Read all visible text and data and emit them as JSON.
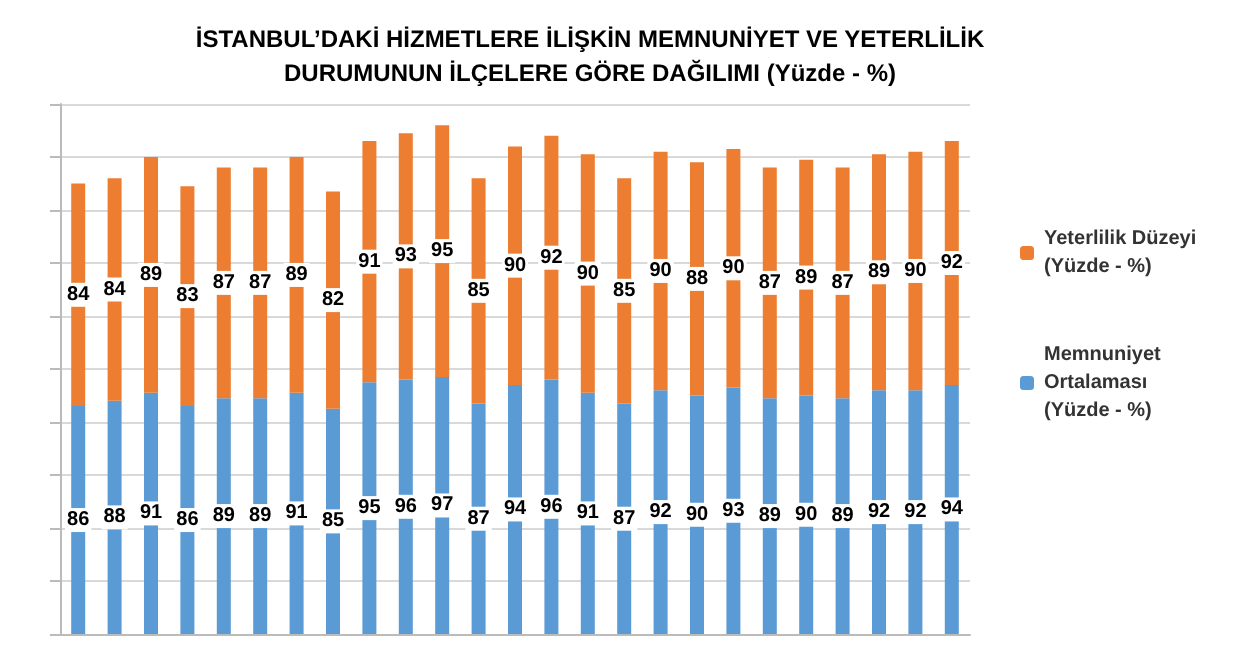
{
  "chart_data": {
    "type": "bar",
    "title": "İSTANBUL’DAKİ HİZMETLERE İLİŞKİN MEMNUNİYET VE YETERLİLİK\nDURUMUNUN İLÇELERE GÖRE DAĞILIMI (Yüzde - %)",
    "categories": [
      null,
      null,
      null,
      null,
      null,
      null,
      null,
      null,
      null,
      null,
      null,
      null,
      null,
      null,
      null,
      null,
      null,
      null,
      null,
      null,
      null,
      null,
      null,
      null,
      null
    ],
    "stacked": true,
    "data_labels": true,
    "grid": "y",
    "legend": "right",
    "ylim": [
      0,
      200
    ],
    "yticks": [
      {
        "value": 0,
        "label": null
      },
      {
        "value": 20,
        "label": null
      },
      {
        "value": 40,
        "label": null
      },
      {
        "value": 60,
        "label": null
      },
      {
        "value": 80,
        "label": null
      },
      {
        "value": 100,
        "label": null
      },
      {
        "value": 120,
        "label": null
      },
      {
        "value": 140,
        "label": null
      },
      {
        "value": 160,
        "label": null
      },
      {
        "value": 180,
        "label": null
      },
      {
        "value": 200,
        "label": null
      }
    ],
    "series": [
      {
        "name": "Memnuniyet Ortalaması (Yüzde - %)",
        "color": "#5b9bd5",
        "values": [
          86,
          88,
          91,
          86,
          89,
          89,
          91,
          85,
          95,
          96,
          97,
          87,
          94,
          96,
          91,
          87,
          92,
          90,
          93,
          89,
          90,
          89,
          92,
          92,
          94
        ]
      },
      {
        "name": "Yeterlilik Düzeyi (Yüzde - %)",
        "color": "#ed7d31",
        "values": [
          84,
          84,
          89,
          83,
          87,
          87,
          89,
          82,
          91,
          93,
          95,
          85,
          90,
          92,
          90,
          85,
          90,
          88,
          90,
          87,
          89,
          87,
          89,
          90,
          92
        ]
      }
    ]
  }
}
